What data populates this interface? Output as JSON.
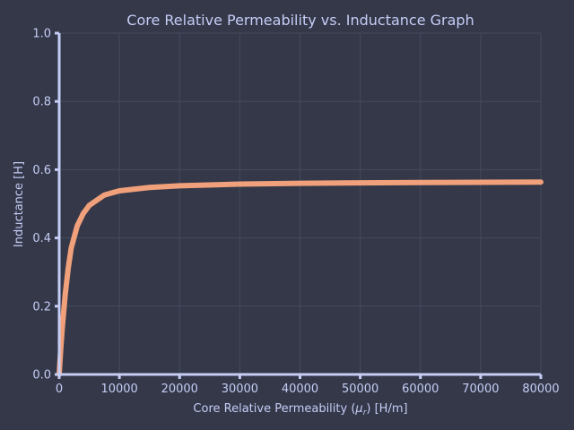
{
  "chart_data": {
    "type": "line",
    "title": "Core Relative Permeability vs. Inductance Graph",
    "xlabel_prefix": "Core Relative Permeability (",
    "xlabel_symbol": "μ",
    "xlabel_subscript": "r",
    "xlabel_suffix": ") [H/m]",
    "ylabel": "Inductance [H]",
    "xlim": [
      0,
      80000
    ],
    "ylim": [
      0,
      1.0
    ],
    "x_ticks": [
      0,
      10000,
      20000,
      30000,
      40000,
      50000,
      60000,
      70000,
      80000
    ],
    "x_tick_labels": [
      "0",
      "10000",
      "20000",
      "30000",
      "40000",
      "50000",
      "60000",
      "70000",
      "80000"
    ],
    "y_ticks": [
      0.0,
      0.2,
      0.4,
      0.6,
      0.8,
      1.0
    ],
    "y_tick_labels": [
      "0.0",
      "0.2",
      "0.4",
      "0.6",
      "0.8",
      "1.0"
    ],
    "grid": true,
    "series": [
      {
        "x": [
          1,
          100,
          250,
          500,
          1000,
          1500,
          2000,
          3000,
          4000,
          5000,
          7500,
          10000,
          15000,
          20000,
          30000,
          40000,
          50000,
          60000,
          70000,
          80000
        ],
        "y": [
          0.0003,
          0.0306,
          0.0725,
          0.1344,
          0.2344,
          0.3115,
          0.3708,
          0.4355,
          0.4717,
          0.4954,
          0.5257,
          0.5381,
          0.548,
          0.5528,
          0.5576,
          0.56,
          0.5614,
          0.5624,
          0.5631,
          0.5636
        ]
      }
    ],
    "colors": {
      "background": "#343849",
      "line": "#f0a07a",
      "axis": "#c5cdf5",
      "text": "#c5cdf5",
      "grid": "#454a5e"
    }
  }
}
